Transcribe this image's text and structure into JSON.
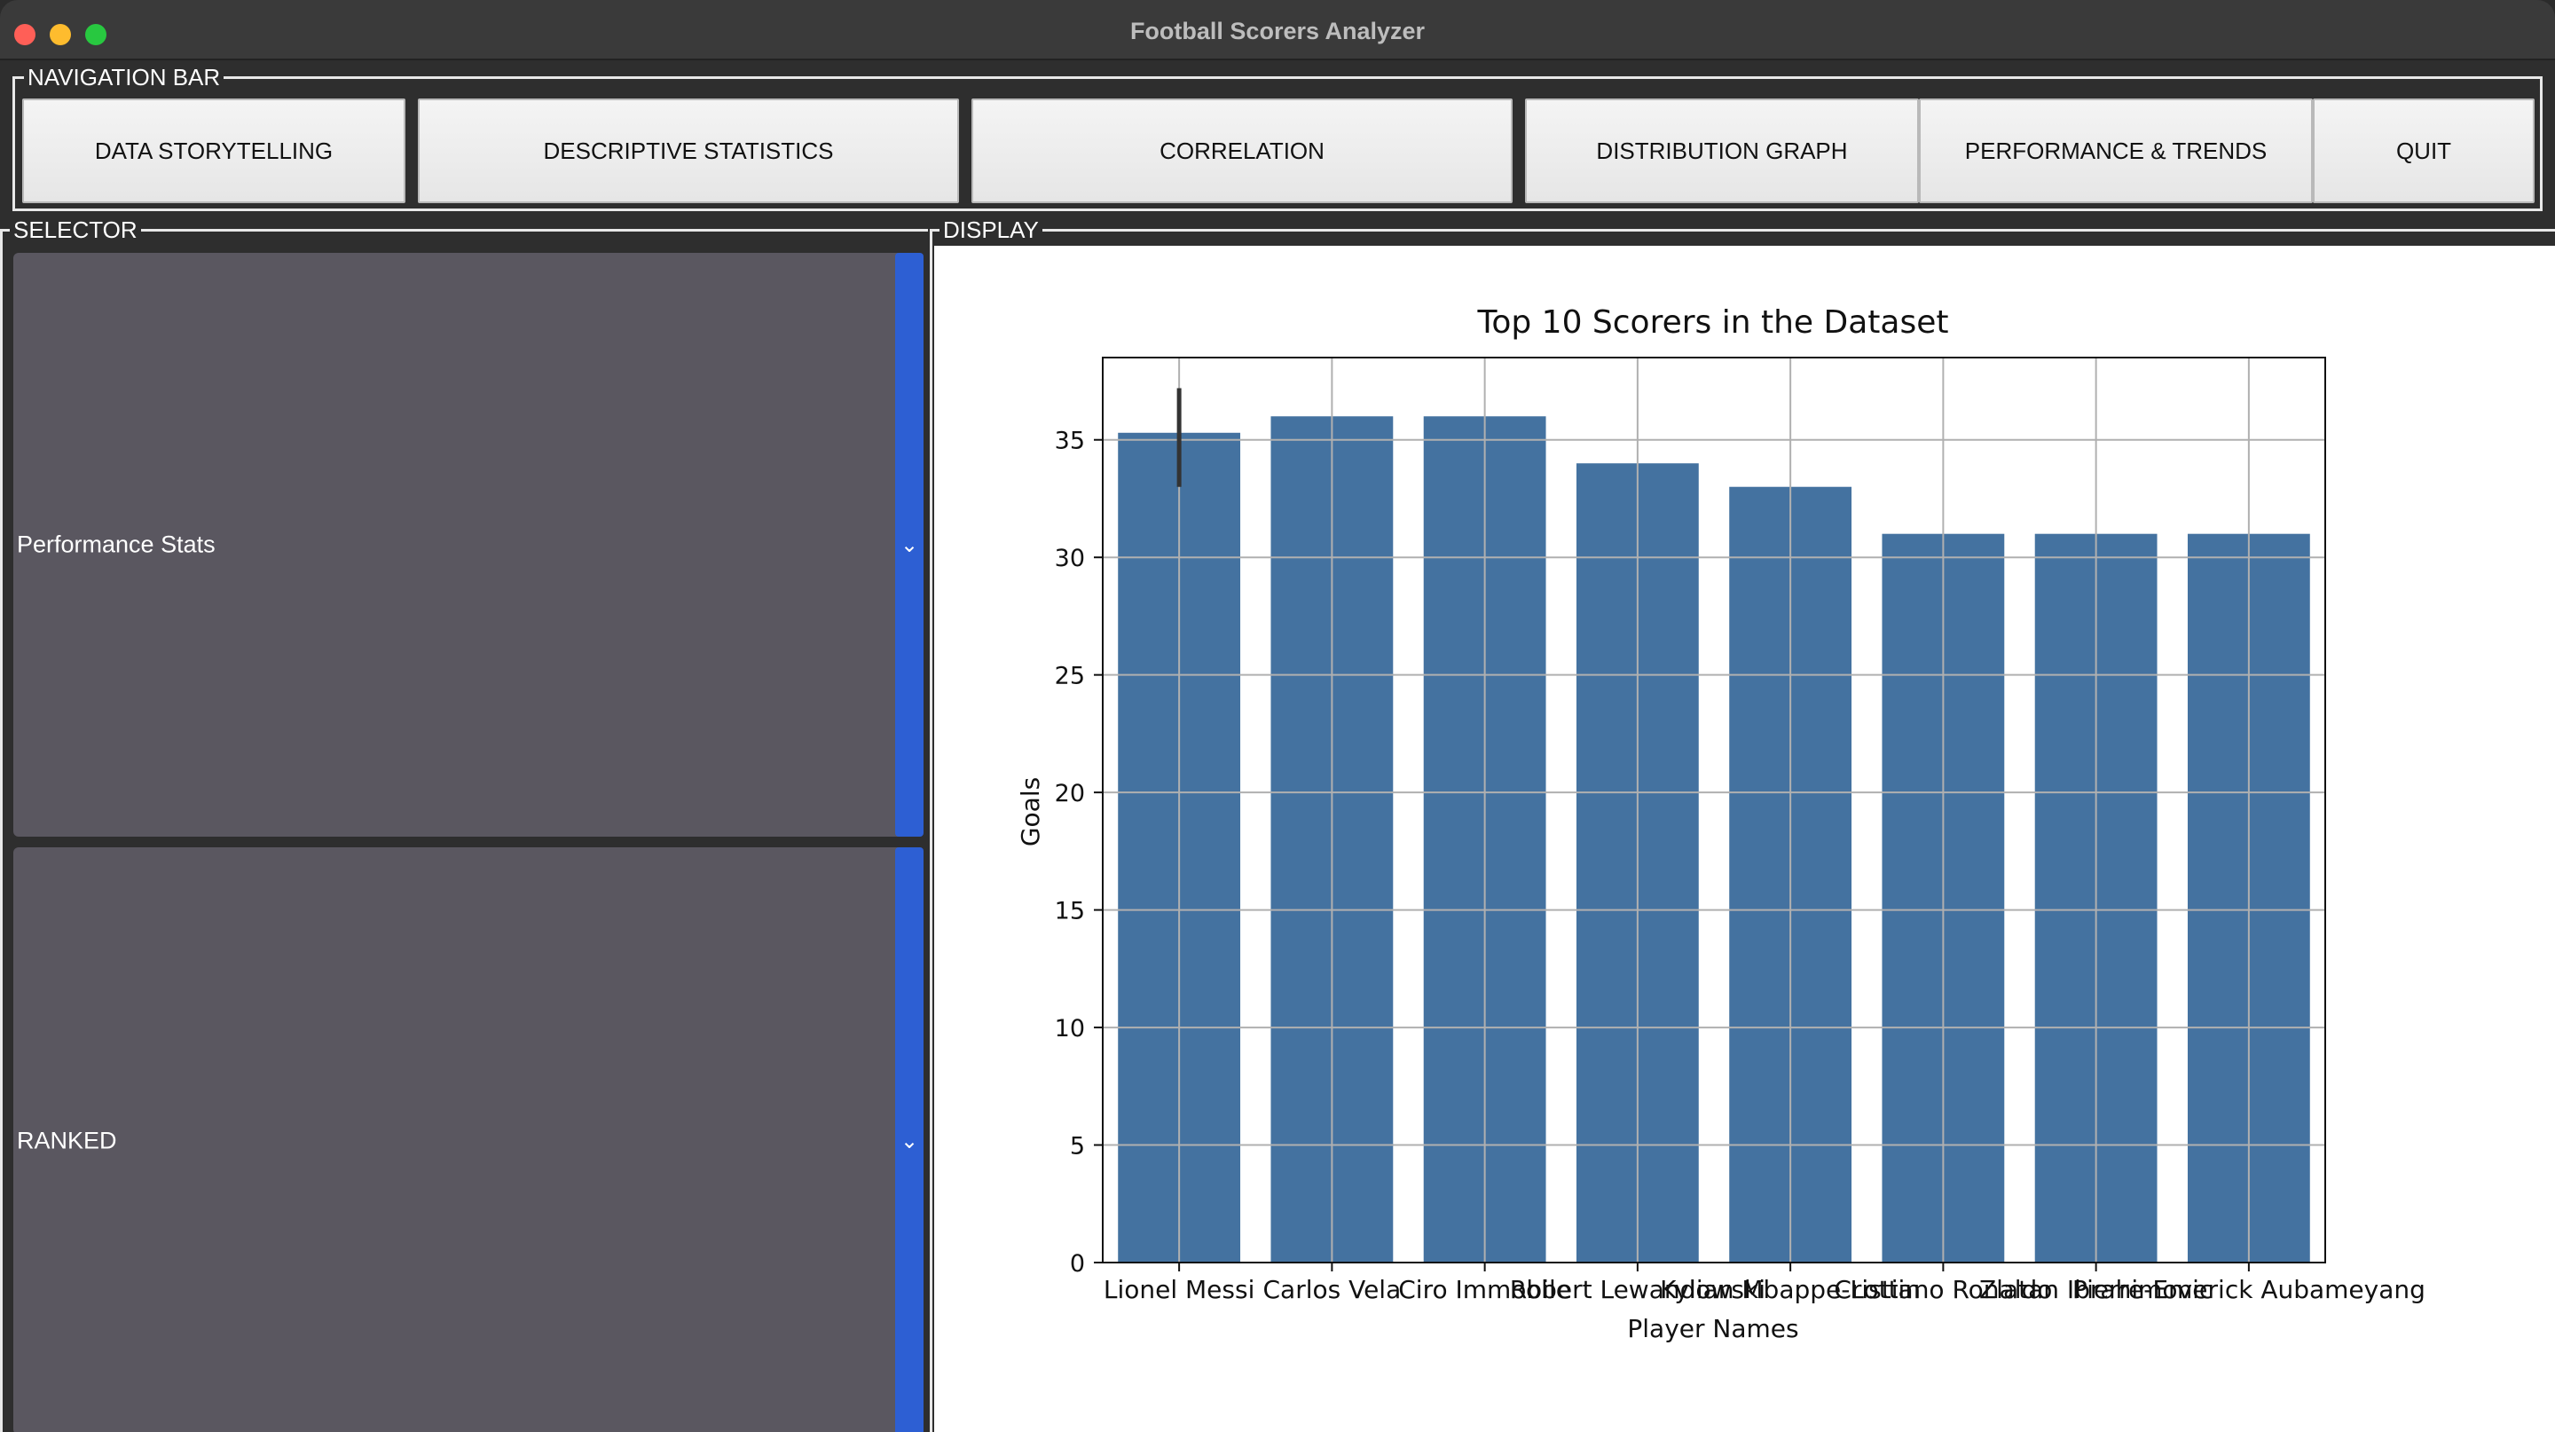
{
  "window": {
    "title": "Football Scorers Analyzer"
  },
  "nav": {
    "legend": "NAVIGATION BAR",
    "buttons": [
      {
        "label": "DATA STORYTELLING"
      },
      {
        "label": "DESCRIPTIVE STATISTICS"
      },
      {
        "label": "CORRELATION"
      },
      {
        "label": "DISTRIBUTION GRAPH"
      },
      {
        "label": "PERFORMANCE & TRENDS"
      },
      {
        "label": "QUIT"
      }
    ]
  },
  "selector": {
    "legend": "SELECTOR",
    "dropdowns": [
      {
        "value": "Performance Stats"
      },
      {
        "value": "RANKED"
      }
    ]
  },
  "display": {
    "legend": "DISPLAY"
  },
  "chart_data": {
    "type": "bar",
    "title": "Top 10 Scorers in the Dataset",
    "xlabel": "Player Names",
    "ylabel": "Goals",
    "categories": [
      "Lionel Messi",
      "Carlos Vela",
      "Ciro Immobile",
      "Robert Lewandowski",
      "Kylian Mbappe-Lottin",
      "Cristiano Ronaldo",
      "Zlatan Ibrahimovic",
      "Pierre-Emerick Aubameyang"
    ],
    "values": [
      35.3,
      36,
      36,
      34,
      33,
      31,
      31,
      31
    ],
    "error_bars": [
      {
        "category": "Lionel Messi",
        "low": 33,
        "high": 37.2
      }
    ],
    "ylim": [
      0,
      38.5
    ],
    "yticks": [
      0,
      5,
      10,
      15,
      20,
      25,
      30,
      35
    ],
    "grid": true,
    "color": "#4472a0"
  }
}
